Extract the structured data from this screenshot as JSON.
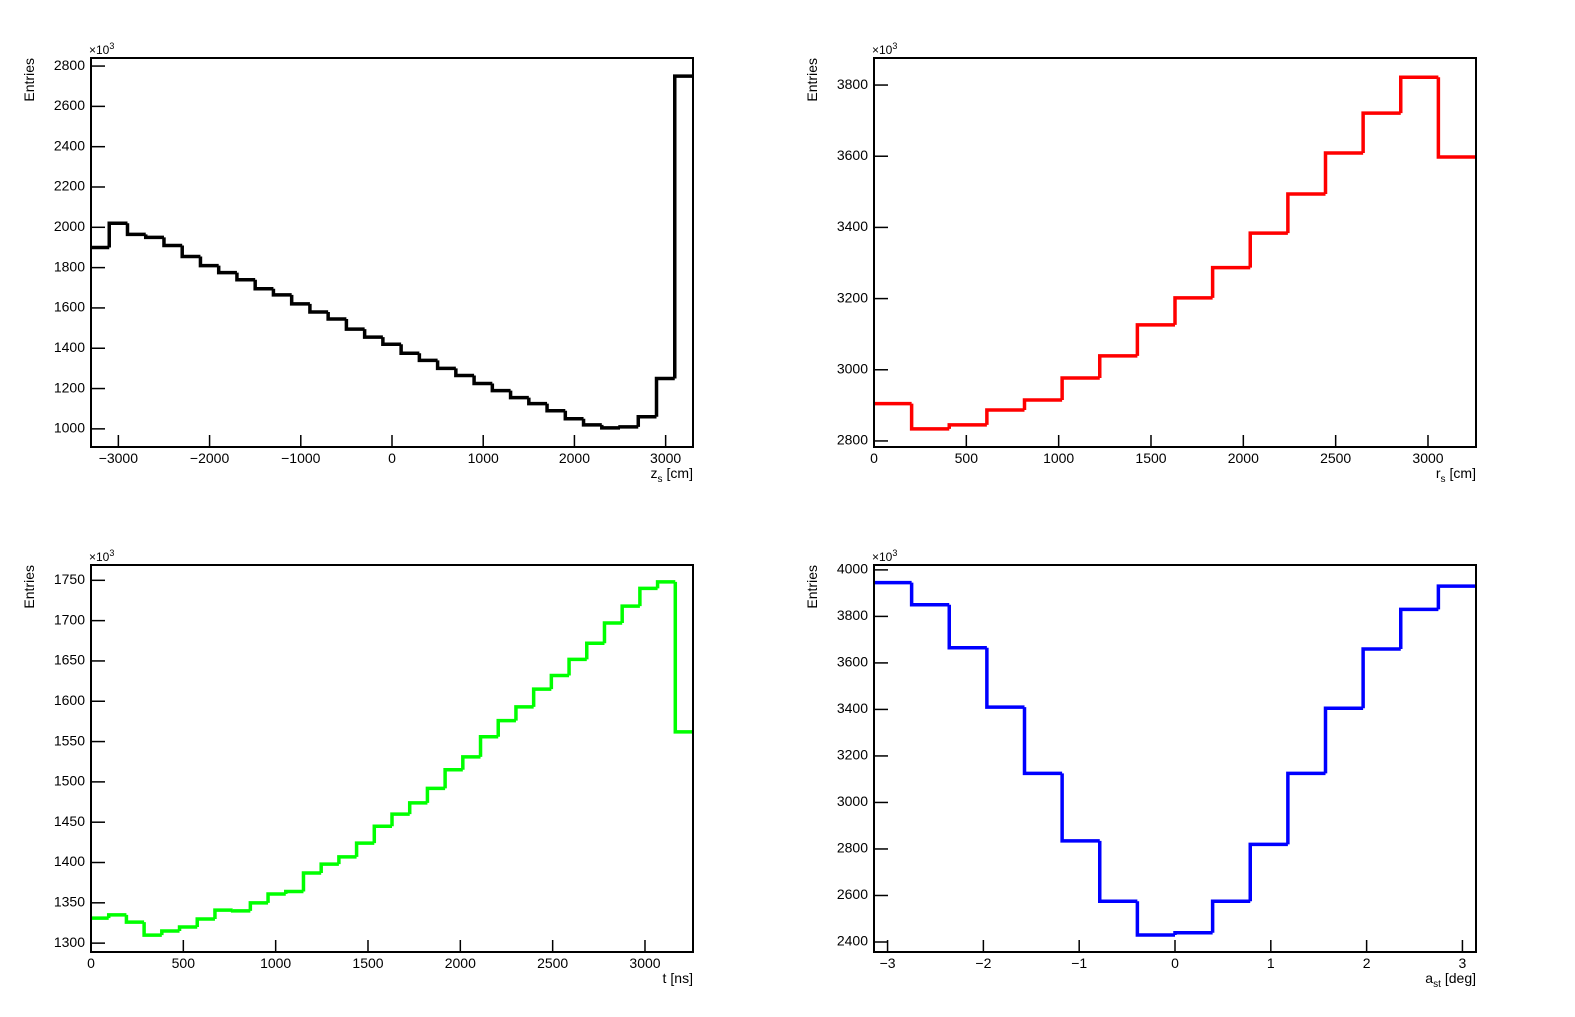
{
  "chart_data": [
    {
      "type": "histogram",
      "color": "#000000",
      "ylabel": "Entries",
      "y_multiplier": {
        "base": "×10",
        "exp": "3"
      },
      "xlabel": {
        "main": "z",
        "sub": "s",
        "unit": "[cm]"
      },
      "bins": [
        -3300,
        -3100,
        -2900,
        -2700,
        -2500,
        -2300,
        -2100,
        -1900,
        -1700,
        -1500,
        -1300,
        -1100,
        -900,
        -700,
        -500,
        -300,
        -100,
        100,
        300,
        500,
        700,
        900,
        1100,
        1300,
        1500,
        1700,
        1900,
        2100,
        2300,
        2500,
        2700,
        2900,
        3100,
        3300
      ],
      "values": [
        1900,
        2020,
        1965,
        1950,
        1910,
        1855,
        1810,
        1775,
        1740,
        1695,
        1665,
        1620,
        1580,
        1545,
        1495,
        1455,
        1420,
        1375,
        1340,
        1300,
        1265,
        1225,
        1190,
        1155,
        1125,
        1090,
        1050,
        1020,
        1005,
        1010,
        1060,
        1250,
        2750
      ],
      "xlim": [
        -3300,
        3300
      ],
      "ylim": [
        910,
        2840
      ],
      "xticks": [
        {
          "value": -3000,
          "label": "−3000"
        },
        {
          "value": -2000,
          "label": "−2000"
        },
        {
          "value": -1000,
          "label": "−1000"
        },
        0,
        1000,
        2000,
        3000
      ],
      "yticks": [
        1000,
        1200,
        1400,
        1600,
        1800,
        2000,
        2200,
        2400,
        2600,
        2800
      ]
    },
    {
      "type": "histogram",
      "color": "#ff0000",
      "ylabel": "Entries",
      "y_multiplier": {
        "base": "×10",
        "exp": "3"
      },
      "xlabel": {
        "main": "r",
        "sub": "s",
        "unit": "[cm]"
      },
      "bins": [
        0,
        203.75,
        407.5,
        611.25,
        815,
        1018.75,
        1222.5,
        1426.25,
        1630,
        1833.75,
        2037.5,
        2241.25,
        2445,
        2648.75,
        2852.5,
        3056.25,
        3260
      ],
      "values": [
        2905,
        2834,
        2845,
        2887,
        2915,
        2977,
        3039,
        3126,
        3202,
        3287,
        3384,
        3494,
        3609,
        3721,
        3822,
        3598
      ],
      "xlim": [
        0,
        3260
      ],
      "ylim": [
        2783,
        3876
      ],
      "xticks": [
        0,
        500,
        1000,
        1500,
        2000,
        2500,
        3000
      ],
      "yticks": [
        2800,
        3000,
        3200,
        3400,
        3600,
        3800
      ]
    },
    {
      "type": "histogram",
      "color": "#00ff00",
      "ylabel": "Entries",
      "y_multiplier": {
        "base": "×10",
        "exp": "3"
      },
      "xlabel": {
        "main": "t",
        "unit": "[ns]"
      },
      "bins": [
        0,
        95.9,
        191.8,
        287.6,
        383.5,
        479.4,
        575.3,
        671.2,
        767.1,
        862.9,
        958.8,
        1054.7,
        1150.6,
        1246.5,
        1342.4,
        1438.2,
        1534.1,
        1630,
        1725.9,
        1821.8,
        1917.6,
        2013.5,
        2109.4,
        2205.3,
        2301.2,
        2397.1,
        2492.9,
        2588.8,
        2684.7,
        2780.6,
        2876.5,
        2972.4,
        3068.2,
        3164.1,
        3260
      ],
      "values": [
        1331,
        1335,
        1326,
        1310,
        1315,
        1320,
        1330,
        1341,
        1340,
        1350,
        1361,
        1364,
        1387,
        1398,
        1407,
        1424,
        1445,
        1460,
        1474,
        1492,
        1515,
        1531,
        1556,
        1576,
        1593,
        1615,
        1632,
        1652,
        1672,
        1697,
        1718,
        1740,
        1748,
        1562
      ],
      "xlim": [
        0,
        3260
      ],
      "ylim": [
        1289,
        1769
      ],
      "xticks": [
        0,
        500,
        1000,
        1500,
        2000,
        2500,
        3000
      ],
      "yticks": [
        1300,
        1350,
        1400,
        1450,
        1500,
        1550,
        1600,
        1650,
        1700,
        1750
      ]
    },
    {
      "type": "histogram",
      "color": "#0000ff",
      "ylabel": "Entries",
      "y_multiplier": {
        "base": "×10",
        "exp": "3"
      },
      "xlabel": {
        "main": "a",
        "sub": "st",
        "unit": "[deg]"
      },
      "bins": [
        -3.1416,
        -2.7489,
        -2.3562,
        -1.9635,
        -1.5708,
        -1.1781,
        -0.7854,
        -0.3927,
        0,
        0.3927,
        0.7854,
        1.1781,
        1.5708,
        1.9635,
        2.3562,
        2.7489,
        3.1416
      ],
      "values": [
        3945,
        3850,
        3665,
        3410,
        3125,
        2835,
        2575,
        2430,
        2440,
        2575,
        2820,
        3125,
        3405,
        3660,
        3830,
        3930
      ],
      "xlim": [
        -3.1416,
        3.1416
      ],
      "ylim": [
        2357,
        4021
      ],
      "xticks": [
        {
          "value": -3,
          "label": "−3"
        },
        {
          "value": -2,
          "label": "−2"
        },
        {
          "value": -1,
          "label": "−1"
        },
        0,
        1,
        2,
        3
      ],
      "yticks": [
        2400,
        2600,
        2800,
        3000,
        3200,
        3400,
        3600,
        3800,
        4000
      ]
    }
  ]
}
